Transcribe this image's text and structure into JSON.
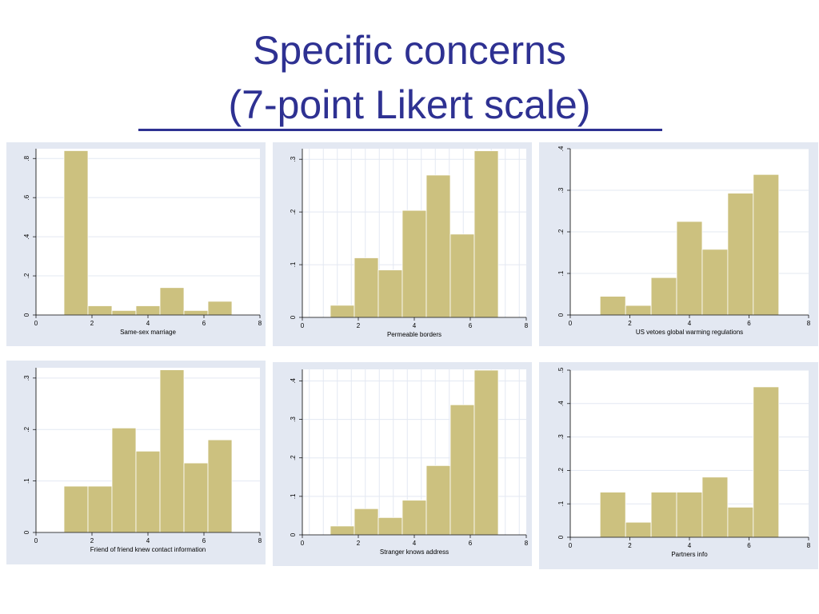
{
  "slide": {
    "title_line1": "Specific concerns",
    "title_line2": "(7-point Likert scale)"
  },
  "colors": {
    "title": "#2e3192",
    "panel_background": "#e3e8f2",
    "plot_background": "#ffffff",
    "bar_fill": "#ccc17f",
    "bar_edge": "#ffffff",
    "gridline": "#e3e8f2"
  },
  "chart_data": [
    {
      "type": "bar",
      "subtype": "histogram",
      "xlabel": "Same-sex marriage",
      "ylabel": "",
      "xlim": [
        0,
        8
      ],
      "xticks": [
        "0",
        "2",
        "4",
        "6",
        "8"
      ],
      "ylim": [
        0,
        0.85
      ],
      "yticks": [
        0,
        0.2,
        0.4,
        0.6,
        0.8
      ],
      "ytick_labels": [
        "0",
        ".2",
        ".4",
        ".6",
        ".8"
      ],
      "vertical_grid": false,
      "bins": [
        [
          1,
          1.857
        ],
        [
          1.857,
          2.714
        ],
        [
          2.714,
          3.571
        ],
        [
          3.571,
          4.429
        ],
        [
          4.429,
          5.286
        ],
        [
          5.286,
          6.143
        ],
        [
          6.143,
          7
        ]
      ],
      "values": [
        0.84,
        0.047,
        0.023,
        0.047,
        0.14,
        0.023,
        0.07
      ]
    },
    {
      "type": "bar",
      "subtype": "histogram",
      "xlabel": "Permeable borders",
      "ylabel": "",
      "xlim": [
        0,
        8
      ],
      "xticks": [
        "0",
        "2",
        "4",
        "6",
        "8"
      ],
      "ylim": [
        0,
        0.32
      ],
      "yticks": [
        0,
        0.1,
        0.2,
        0.3
      ],
      "ytick_labels": [
        "0",
        ".1",
        ".2",
        ".3"
      ],
      "vertical_grid": true,
      "bins": [
        [
          1,
          1.857
        ],
        [
          1.857,
          2.714
        ],
        [
          2.714,
          3.571
        ],
        [
          3.571,
          4.429
        ],
        [
          4.429,
          5.286
        ],
        [
          5.286,
          6.143
        ],
        [
          6.143,
          7
        ]
      ],
      "values": [
        0.023,
        0.113,
        0.09,
        0.203,
        0.27,
        0.158,
        0.316
      ]
    },
    {
      "type": "bar",
      "subtype": "histogram",
      "xlabel": "US vetoes global warming regulations",
      "ylabel": "",
      "xlim": [
        0,
        8
      ],
      "xticks": [
        "0",
        "2",
        "4",
        "6",
        "8"
      ],
      "ylim": [
        0,
        0.4
      ],
      "yticks": [
        0,
        0.1,
        0.2,
        0.3,
        0.4
      ],
      "ytick_labels": [
        "0",
        ".1",
        ".2",
        ".3",
        ".4"
      ],
      "vertical_grid": false,
      "bins": [
        [
          1,
          1.857
        ],
        [
          1.857,
          2.714
        ],
        [
          2.714,
          3.571
        ],
        [
          3.571,
          4.429
        ],
        [
          4.429,
          5.286
        ],
        [
          5.286,
          6.143
        ],
        [
          6.143,
          7
        ]
      ],
      "values": [
        0.045,
        0.023,
        0.09,
        0.225,
        0.158,
        0.293,
        0.338
      ]
    },
    {
      "type": "bar",
      "subtype": "histogram",
      "xlabel": "Friend of friend knew contact information",
      "ylabel": "",
      "xlim": [
        0,
        8
      ],
      "xticks": [
        "0",
        "2",
        "4",
        "6",
        "8"
      ],
      "ylim": [
        0,
        0.32
      ],
      "yticks": [
        0,
        0.1,
        0.2,
        0.3
      ],
      "ytick_labels": [
        "0",
        ".1",
        ".2",
        ".3"
      ],
      "vertical_grid": false,
      "bins": [
        [
          1,
          1.857
        ],
        [
          1.857,
          2.714
        ],
        [
          2.714,
          3.571
        ],
        [
          3.571,
          4.429
        ],
        [
          4.429,
          5.286
        ],
        [
          5.286,
          6.143
        ],
        [
          6.143,
          7
        ]
      ],
      "values": [
        0.09,
        0.09,
        0.203,
        0.158,
        0.316,
        0.135,
        0.18
      ]
    },
    {
      "type": "bar",
      "subtype": "histogram",
      "xlabel": "Stranger knows address",
      "ylabel": "",
      "xlim": [
        0,
        8
      ],
      "xticks": [
        "0",
        "2",
        "4",
        "6",
        "8"
      ],
      "ylim": [
        0,
        0.43
      ],
      "yticks": [
        0,
        0.1,
        0.2,
        0.3,
        0.4
      ],
      "ytick_labels": [
        "0",
        ".1",
        ".2",
        ".3",
        ".4"
      ],
      "vertical_grid": true,
      "bins": [
        [
          1,
          1.857
        ],
        [
          1.857,
          2.714
        ],
        [
          2.714,
          3.571
        ],
        [
          3.571,
          4.429
        ],
        [
          4.429,
          5.286
        ],
        [
          5.286,
          6.143
        ],
        [
          6.143,
          7
        ]
      ],
      "values": [
        0.023,
        0.068,
        0.045,
        0.09,
        0.18,
        0.338,
        0.428
      ]
    },
    {
      "type": "bar",
      "subtype": "histogram",
      "xlabel": "Partners info",
      "ylabel": "",
      "xlim": [
        0,
        8
      ],
      "xticks": [
        "0",
        "2",
        "4",
        "6",
        "8"
      ],
      "ylim": [
        0,
        0.5
      ],
      "yticks": [
        0,
        0.1,
        0.2,
        0.3,
        0.4,
        0.5
      ],
      "ytick_labels": [
        "0",
        ".1",
        ".2",
        ".3",
        ".4",
        ".5"
      ],
      "vertical_grid": false,
      "bins": [
        [
          1,
          1.857
        ],
        [
          1.857,
          2.714
        ],
        [
          2.714,
          3.571
        ],
        [
          3.571,
          4.429
        ],
        [
          4.429,
          5.286
        ],
        [
          5.286,
          6.143
        ],
        [
          6.143,
          7
        ]
      ],
      "values": [
        0.135,
        0.045,
        0.135,
        0.135,
        0.18,
        0.09,
        0.45
      ]
    }
  ]
}
